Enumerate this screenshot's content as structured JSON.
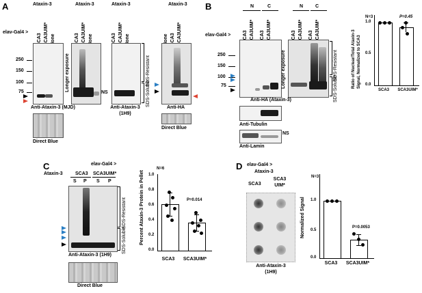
{
  "panelA": {
    "letter": "A",
    "driver": "elav-Gal4 >",
    "col_headers": [
      "Ataxin-3",
      "Ataxin-3",
      "Ataxin-3",
      "Ataxin-3"
    ],
    "lanes1": [
      "SCA3",
      "SCA3UIM*",
      "None"
    ],
    "lanes2": [
      "SCA3",
      "SCA3UIM*",
      "None"
    ],
    "lanes3": [
      "SCA3",
      "SCA3UIM*",
      "None"
    ],
    "lanes4": [
      "None",
      "SCA3",
      "SCA3UIM*"
    ],
    "markers": [
      "250",
      "150",
      "100",
      "75"
    ],
    "longer": "Longer exposure",
    "ns": "NS",
    "sds_resistant": "SDS-Resistant",
    "sds_soluble": "SDS-Soluble",
    "blot1_label": "Anti-Ataxin-3 (MJD)",
    "blot2_label": "Anti-Ataxin-3",
    "blot2_label2": "(1H9)",
    "blot3_label": "Anti-HA",
    "direct_blue": "Direct Blue",
    "direct_blue2": "Direct Blue"
  },
  "panelB": {
    "letter": "B",
    "driver": "elav-Gal4 >",
    "fraction_n": "N",
    "fraction_c": "C",
    "lanes": [
      "SCA3",
      "SCA3UIM*",
      "SCA3",
      "SCA3UIM*"
    ],
    "lanes2": [
      "SCA3",
      "SCA3UIM*",
      "SCA3",
      "SCA3UIM*"
    ],
    "markers": [
      "250",
      "150",
      "100",
      "75"
    ],
    "longer": "Longer exposure",
    "sds_resistant": "SDS-Resistant",
    "sds_soluble": "SDS-Soluble",
    "blot_label": "Anti-HA (Ataxin-3)",
    "tubulin": "Anti-Tubulin",
    "lamin": "Anti-Lamin",
    "ns": "NS"
  },
  "chartB": {
    "n": "N=3",
    "p": "P=0.45",
    "ylabel1": "Ratio of Nuclear/Total Ataxin-3",
    "ylabel2": "Signal, Normalized to SCA3",
    "yticks": [
      "0.0",
      "0.5",
      "1.0"
    ],
    "categories": [
      "SCA3",
      "SCA3UIM*"
    ]
  },
  "panelC": {
    "letter": "C",
    "driver": "elav-Gal4 >",
    "ataxin": "Ataxin-3",
    "groups": [
      "SCA3",
      "SCA3UIM*"
    ],
    "fractions": [
      "S",
      "P",
      "S",
      "P"
    ],
    "sds_resistant": "SDS-Resistant",
    "sds_soluble": "SDS-Soluble",
    "blot_label": "Anti-Ataxin-3 (1H9)",
    "direct_blue": "Direct Blue"
  },
  "chartC": {
    "n": "N=6",
    "p": "P=0.014",
    "ylabel": "Percent Ataxin-3 Protein in Pellet",
    "yticks": [
      "0.0",
      "0.2",
      "0.4",
      "0.6",
      "0.8",
      "1.0"
    ],
    "categories": [
      "SCA3",
      "SCA3UIM*"
    ]
  },
  "panelD": {
    "letter": "D",
    "driver": "elav-Gal4 >",
    "ataxin": "Ataxin-3",
    "col1": "SCA3",
    "col2a": "SCA3",
    "col2b": "UIM*",
    "label1": "Anti-Ataxin-3",
    "label2": "(1H9)"
  },
  "chartD": {
    "n": "N=3",
    "p": "P=0.0053",
    "ylabel": "Normalized Signal",
    "yticks": [
      "0.0",
      "0.5",
      "1.0"
    ],
    "categories": [
      "SCA3",
      "SCA3UIM*"
    ]
  },
  "chart_data": [
    {
      "type": "bar",
      "title": "",
      "ylabel": "Ratio of Nuclear/Total Ataxin-3 Signal, Normalized to SCA3",
      "categories": [
        "SCA3",
        "SCA3UIM*"
      ],
      "values": [
        1.0,
        0.93
      ],
      "errors": [
        0.01,
        0.07
      ],
      "points": [
        [
          1.0,
          1.0,
          1.0
        ],
        [
          1.0,
          0.94,
          0.84
        ]
      ],
      "ylim": [
        0,
        1.1
      ],
      "annotations": [
        "N=3",
        "P=0.45"
      ]
    },
    {
      "type": "bar",
      "title": "",
      "ylabel": "Percent Ataxin-3 Protein in Pellet",
      "categories": [
        "SCA3",
        "SCA3UIM*"
      ],
      "values": [
        0.61,
        0.37
      ],
      "errors": [
        0.16,
        0.11
      ],
      "points": [
        [
          0.78,
          0.72,
          0.62,
          0.57,
          0.47,
          0.42
        ],
        [
          0.52,
          0.42,
          0.38,
          0.35,
          0.28,
          0.25
        ]
      ],
      "ylim": [
        0,
        1.0
      ],
      "annotations": [
        "N=6",
        "P=0.014"
      ]
    },
    {
      "type": "bar",
      "title": "",
      "ylabel": "Normalized Signal",
      "categories": [
        "SCA3",
        "SCA3UIM*"
      ],
      "values": [
        1.0,
        0.3
      ],
      "errors": [
        0.0,
        0.08
      ],
      "points": [
        [
          1.0,
          1.0,
          1.0
        ],
        [
          0.38,
          0.3,
          0.22
        ]
      ],
      "ylim": [
        0,
        1.25
      ],
      "annotations": [
        "N=3",
        "P=0.0053"
      ]
    }
  ]
}
